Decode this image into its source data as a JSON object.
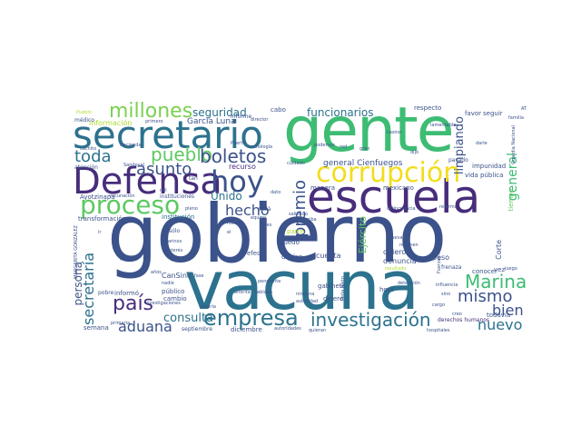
{
  "colors": {
    "navy": "#472d7b",
    "indigo": "#3b528b",
    "teal": "#2c728e",
    "cyan": "#21918c",
    "green": "#28ae80",
    "mint": "#5ec962",
    "lime": "#addc30",
    "yellow": "#fde725",
    "purple": "#440154"
  },
  "words": {
    "gobierno": "gobierno",
    "vacuna": "vacuna",
    "gente": "gente",
    "escuela": "escuela",
    "secretario": "secretario",
    "defensa": "Defensa",
    "hoy": "hoy",
    "corrupcion": "corrupción",
    "proceso": "proceso",
    "pais": "país",
    "empresa": "empresa",
    "investigacion": "investigación",
    "millones": "millones",
    "pueblo": "pueblo",
    "boletos": "boletos",
    "asunto": "asunto",
    "toda": "toda",
    "hecho": "hecho",
    "premio": "premio",
    "marina": "Marina",
    "mismo": "mismo",
    "bien": "bien",
    "nuevo": "nuevo",
    "aduana": "aduana",
    "consulta": "consulta",
    "secretaria": "secretaría",
    "persona": "persona",
    "general": "general",
    "limpiando": "limpiando",
    "seguridad": "seguridad",
    "funcionarios": "funcionarios",
    "ejercito": "Ejército",
    "general_cienfuegos": "general Cienfuegos",
    "unido": "Unido",
    "garcia_luna": "García Luna",
    "informacion": "información",
    "primero": "primero",
    "recurso": "recurso",
    "manera": "manera",
    "mexicano": "mexicano",
    "instituciones": "instituciones",
    "ayotzinapa": "Ayotzinapa",
    "transformacion": "transformación",
    "institucion": "institución",
    "cansino": "CanSino",
    "publico": "público",
    "cambio": "cambio",
    "informo": "informó",
    "pobre": "pobre",
    "solo": "sólo",
    "semana": "semana",
    "primaria": "primaria",
    "septiembre": "septiembre",
    "diciembre": "diciembre",
    "derechos_humanos": "derechos humanos",
    "hospitales": "hospitales",
    "corte": "Corte",
    "peso": "peso",
    "quiero": "quiero",
    "denuncia": "denuncia",
    "cuenta": "cuenta",
    "hora": "hora",
    "dinero": "dinero",
    "gabinete": "gabinete",
    "puedo": "puedo",
    "efecto": "efecto",
    "decian": "decían",
    "parte": "parte",
    "impunidad": "impunidad",
    "vida_publica": "vida pública",
    "conocer": "conocer",
    "vez": "vez",
    "todavia": "todavía",
    "frenaza": "frenaza",
    "cabo": "cabo",
    "respecto": "respecto",
    "favor": "favor",
    "seguir": "seguir",
    "medico": "médico",
    "pueblo_sm": "Pueblo",
    "hacienda": "Hacienda",
    "cachito": "cachito",
    "atencion": "atención",
    "sandoval": "Sandoval",
    "informe": "informe",
    "director": "director",
    "tecnologia": "tecnología",
    "casino": "casino",
    "lamentable": "lamentable",
    "pasado": "pasado",
    "darle": "darle",
    "familia": "familia",
    "fuerzas_armadas": "Fuerzas Armadas",
    "guardia_nacional": "Guardia Nacional",
    "regimen": "régimen",
    "nueva": "nueva",
    "muchas": "Muchas",
    "banco": "banco",
    "nadie": "nadie",
    "podria": "podría",
    "autoridades": "autoridades",
    "quieran": "quieran",
    "detencion": "detención",
    "influencia": "influencia",
    "pena_nieto": "Peña Nieto",
    "gran": "gran",
    "mil": "mil",
    "vacunacion": "vacunación",
    "tiempo": "tiempo",
    "pleno": "pleno",
    "estos": "estos",
    "ciudad": "ciudad",
    "ojala": "ojalá",
    "dato": "dato",
    "equipo": "equipo",
    "fiscalia": "fiscalía",
    "miles": "miles",
    "arriba": "arriba",
    "cargo": "cargo",
    "creo": "creo",
    "sino": "sino",
    "podemos": "podemos",
    "cuidado": "cuidado",
    "fase": "fase",
    "anos": "años",
    "marinos": "marinos",
    "interes": "interés",
    "juego": "juego",
    "reforma": "reforma",
    "delincuencia": "delincuencia",
    "ahorita": "ahorita",
    "hablaba": "hablaba",
    "pendiente": "pendiente",
    "ninguna": "ninguna",
    "autoridad": "autoridad",
    "margarita_gonzalez": "MARGARITA GONZÁLEZ",
    "investigaciones": "investigaciones",
    "escenas": "escenas",
    "hecho_ver": "Puerto",
    "tan": "tan",
    "saliendo": "saliendo",
    "rest": "red",
    "dar": "dar",
    "dijo": "dijo",
    "vacunas": "vacunas",
    "salud": "salud",
    "entrego": "entregó",
    "colegio": "colegio",
    "respuesta": "respuesta",
    "hablar": "hablar",
    "apoyo": "apoyo",
    "caso": "caso",
    "resultado": "resultado",
    "covid": "covid",
    "estamos": "estamos",
    "unicos": "únicos",
    "si": "SÍ",
    "el": "el",
    "ir": "ir",
    "at": "AT",
    "fue": "fue"
  }
}
